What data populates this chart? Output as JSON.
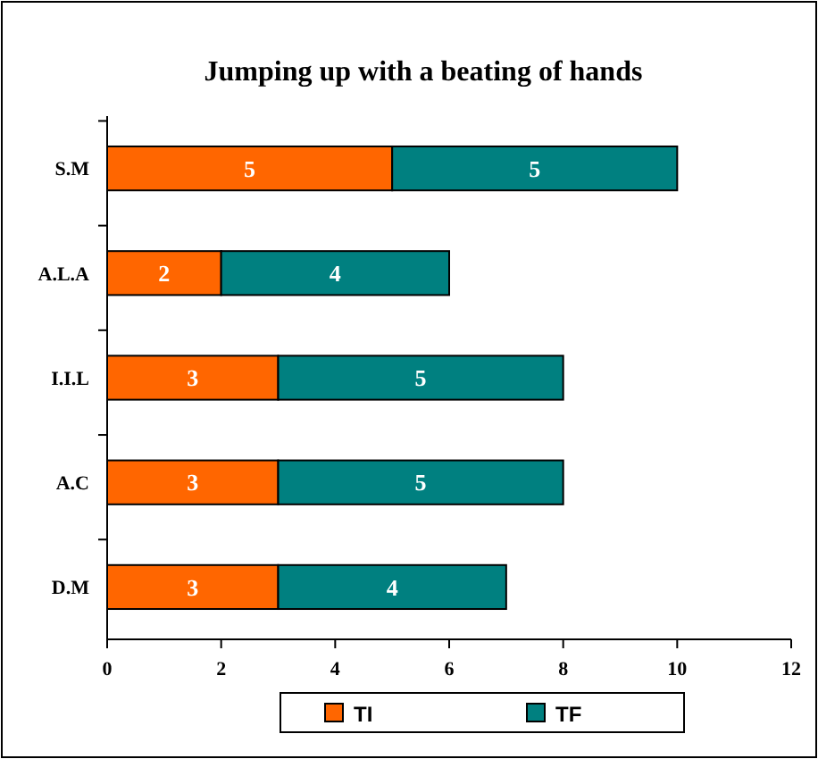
{
  "chart_data": {
    "type": "bar",
    "title": "Jumping up with a beating of hands",
    "orientation": "horizontal",
    "stacked": true,
    "categories": [
      "S.M",
      "A.L.A",
      "I.I.L",
      "A.C",
      "D.M"
    ],
    "series": [
      {
        "name": "TI",
        "color": "#ff6600",
        "values": [
          5,
          2,
          3,
          3,
          3
        ]
      },
      {
        "name": "TF",
        "color": "#008080",
        "values": [
          5,
          4,
          5,
          5,
          4
        ]
      }
    ],
    "xlim": [
      0,
      12
    ],
    "xticks": [
      0,
      2,
      4,
      6,
      8,
      10,
      12
    ],
    "data_labels": true,
    "legend": "bottom",
    "grid": false
  }
}
